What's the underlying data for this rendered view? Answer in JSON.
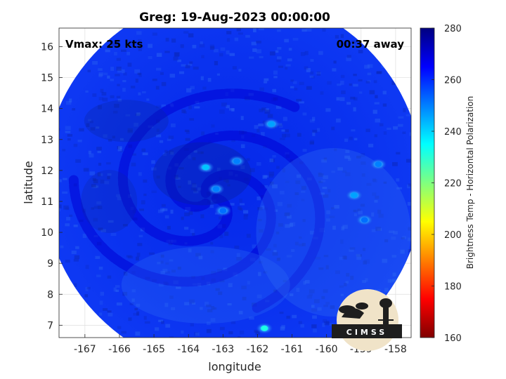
{
  "chart_data": {
    "type": "heatmap",
    "title": "Greg: 19-Aug-2023 00:00:00",
    "xlabel": "longitude",
    "ylabel": "latitude",
    "xlim": [
      -167.75,
      -157.55
    ],
    "ylim": [
      6.6,
      16.6
    ],
    "xticks": [
      -167,
      -166,
      -165,
      -164,
      -163,
      -162,
      -161,
      -160,
      -159,
      -158
    ],
    "yticks": [
      7,
      8,
      9,
      10,
      11,
      12,
      13,
      14,
      15,
      16
    ],
    "grid": true,
    "annotations": {
      "top_left": "Vmax: 25 kts",
      "top_right": "00:37 away"
    },
    "colorbar": {
      "label": "Brightness Temp - Horizontal Polarization",
      "range": [
        160,
        280
      ],
      "ticks": [
        160,
        180,
        200,
        220,
        240,
        260,
        280
      ],
      "colormap": "jet"
    },
    "swath_center": [
      -162.7,
      11.6
    ],
    "swath_radius_deg": 5.5,
    "background_value": 262,
    "features": [
      {
        "kind": "cold_spiral_band",
        "center": [
          -163.4,
          11.1
        ],
        "value": 270
      },
      {
        "kind": "warm_spot",
        "lon": -163.5,
        "lat": 12.1,
        "value": 242
      },
      {
        "kind": "warm_spot",
        "lon": -163.2,
        "lat": 11.4,
        "value": 250
      },
      {
        "kind": "warm_spot",
        "lon": -163.0,
        "lat": 10.7,
        "value": 252
      },
      {
        "kind": "warm_spot",
        "lon": -162.6,
        "lat": 12.3,
        "value": 250
      },
      {
        "kind": "warm_spot",
        "lon": -161.6,
        "lat": 13.5,
        "value": 246
      },
      {
        "kind": "warm_spot",
        "lon": -159.2,
        "lat": 11.2,
        "value": 246
      },
      {
        "kind": "warm_spot",
        "lon": -158.5,
        "lat": 12.2,
        "value": 250
      },
      {
        "kind": "warm_spot",
        "lon": -158.9,
        "lat": 10.4,
        "value": 252
      },
      {
        "kind": "warm_spot",
        "lon": -161.8,
        "lat": 6.9,
        "value": 232
      }
    ]
  },
  "logo": {
    "text": "CIMSS"
  }
}
